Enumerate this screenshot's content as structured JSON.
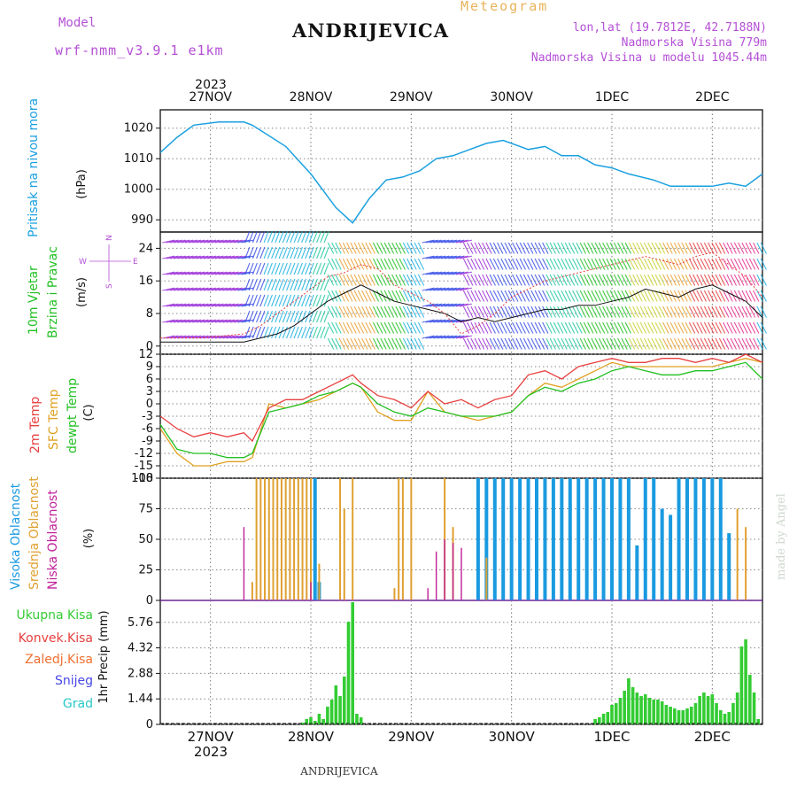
{
  "header": {
    "model_label": "Model",
    "model_name": "wrf-nmm_v3.9.1 e1km",
    "title": "ANDRIJEVICA",
    "meteogram_label": "Meteogram",
    "lonlat": "lon,lat (19.7812E, 42.7188N)",
    "elevation": "Nadmorska Visina 779m",
    "model_elevation": "Nadmorska Visina u modelu 1045.44m"
  },
  "top_axis": {
    "year": "2023",
    "dates": [
      "27NOV",
      "28NOV",
      "29NOV",
      "30NOV",
      "1DEC",
      "2DEC"
    ]
  },
  "bottom_axis": {
    "year": "2023",
    "dates": [
      "27NOV",
      "28NOV",
      "29NOV",
      "30NOV",
      "1DEC",
      "2DEC"
    ],
    "footer": "ANDRIJEVICA"
  },
  "watermark": "made by Angel",
  "colors": {
    "pressure": "#1aa0e0",
    "wind_label": "#22c022",
    "temp2m": "#e84040",
    "sfc": "#e0a020",
    "dew": "#22c022",
    "high": "#1a9ae0",
    "mid": "#e0a030",
    "low": "#c0209a",
    "precip": "#33cc33",
    "kisa_konv": "#e84040",
    "kisa_zal": "#f07030",
    "snow": "#4848e8",
    "grad": "#28c8c8"
  },
  "panels": {
    "pressure": {
      "label1": "Pritisak na nivou mora",
      "unit": "(hPa)"
    },
    "wind": {
      "label1": "10m Vjetar",
      "label2": "Brzina i Pravac",
      "unit": "(m/s)",
      "compass": {
        "n": "N",
        "s": "S",
        "e": "E",
        "w": "W"
      }
    },
    "temp": {
      "label1": "2m Temp",
      "label2": "SFC Temp",
      "label3": "dewpt Temp",
      "unit": "(C)"
    },
    "cloud": {
      "label1": "Visoka Oblacnost",
      "label2": "Srednja Oblacnost",
      "label3": "Niska Oblacnost",
      "unit": "(%)"
    },
    "precip": {
      "legend": [
        "Ukupna Kisa",
        "Konvek.Kisa",
        "Zaledj.Kisa",
        "Snijeg",
        "Grad"
      ],
      "unit": "1hr Precip (mm)"
    }
  },
  "chart_data": [
    {
      "type": "line",
      "id": "pressure",
      "ylabel": "(hPa)",
      "ylim": [
        986,
        1026
      ],
      "yticks": [
        990,
        1000,
        1010,
        1020
      ],
      "xlim_hours": [
        0,
        144
      ],
      "series": [
        {
          "x": [
            0,
            4,
            8,
            14,
            20,
            22,
            30,
            36,
            42,
            46,
            48,
            50,
            54,
            58,
            62,
            66,
            70,
            74,
            78,
            82,
            88,
            92,
            96,
            100,
            104,
            108,
            112,
            118,
            122,
            128,
            132,
            136,
            140,
            144
          ],
          "y": [
            1012,
            1017,
            1021,
            1022,
            1022,
            1021,
            1014,
            1005,
            994,
            989,
            993,
            997,
            1003,
            1004,
            1006,
            1010,
            1011,
            1013,
            1015,
            1016,
            1013,
            1014,
            1011,
            1011,
            1008,
            1007,
            1005,
            1003,
            1001,
            1001,
            1001,
            1002,
            1001,
            1005
          ]
        }
      ]
    },
    {
      "type": "line",
      "id": "wind",
      "ylabel": "(m/s)",
      "ylim": [
        -2,
        28
      ],
      "yticks": [
        0,
        8,
        16,
        24
      ],
      "series": [
        {
          "x": [
            0,
            10,
            20,
            24,
            28,
            32,
            36,
            40,
            44,
            48,
            52,
            56,
            60,
            64,
            68,
            72,
            76,
            80,
            84,
            88,
            92,
            96,
            100,
            104,
            108,
            112,
            116,
            120,
            124,
            128,
            132,
            136,
            140,
            144
          ],
          "y": [
            1,
            1,
            1,
            2,
            3,
            5,
            8,
            11,
            13,
            15,
            13,
            11,
            10,
            9,
            8,
            6,
            7,
            6,
            7,
            8,
            9,
            9,
            10,
            10,
            11,
            12,
            14,
            13,
            12,
            14,
            15,
            13,
            11,
            7
          ]
        },
        {
          "x": [
            0,
            10,
            20,
            24,
            28,
            32,
            36,
            40,
            44,
            48,
            52,
            56,
            60,
            64,
            68,
            72,
            76,
            80,
            84,
            88,
            92,
            96,
            100,
            104,
            108,
            112,
            116,
            120,
            124,
            128,
            132,
            136,
            140,
            144
          ],
          "y": [
            2,
            2,
            3,
            5,
            8,
            11,
            14,
            17,
            18,
            20,
            19,
            15,
            13,
            11,
            8,
            3,
            5,
            8,
            12,
            14,
            16,
            17,
            18,
            19,
            20,
            21,
            22,
            21,
            20,
            22,
            23,
            20,
            17,
            12
          ]
        }
      ]
    },
    {
      "type": "line",
      "id": "temp",
      "ylabel": "(C)",
      "ylim": [
        -18,
        12
      ],
      "yticks": [
        -18,
        -15,
        -12,
        -9,
        -6,
        -3,
        0,
        3,
        6,
        9,
        12
      ],
      "series": [
        {
          "name": "2m Temp",
          "x": [
            0,
            4,
            8,
            12,
            16,
            20,
            22,
            26,
            30,
            34,
            38,
            42,
            46,
            48,
            52,
            56,
            60,
            64,
            68,
            72,
            76,
            80,
            84,
            88,
            92,
            96,
            100,
            104,
            108,
            112,
            116,
            120,
            124,
            128,
            132,
            136,
            140,
            144
          ],
          "y": [
            -3,
            -6,
            -8,
            -7,
            -8,
            -7,
            -9,
            -1,
            1,
            1,
            3,
            5,
            7,
            5,
            2,
            1,
            -1,
            3,
            0,
            1,
            -1,
            1,
            2,
            7,
            8,
            6,
            9,
            10,
            11,
            10,
            10,
            11,
            11,
            10,
            11,
            10,
            12,
            10
          ]
        },
        {
          "name": "SFC Temp",
          "x": [
            0,
            4,
            8,
            12,
            16,
            20,
            22,
            26,
            30,
            34,
            38,
            42,
            46,
            48,
            52,
            56,
            60,
            64,
            68,
            72,
            76,
            80,
            84,
            88,
            92,
            96,
            100,
            104,
            108,
            112,
            116,
            120,
            124,
            128,
            132,
            136,
            140,
            144
          ],
          "y": [
            -6,
            -12,
            -15,
            -15,
            -14,
            -14,
            -13,
            0,
            -1,
            0,
            1,
            3,
            5,
            4,
            -2,
            -4,
            -4,
            3,
            -2,
            -3,
            -4,
            -3,
            -2,
            2,
            5,
            4,
            6,
            8,
            10,
            9,
            9,
            9,
            9,
            9,
            9,
            10,
            11,
            10
          ]
        },
        {
          "name": "dewpt Temp",
          "x": [
            0,
            4,
            8,
            12,
            16,
            20,
            22,
            26,
            30,
            34,
            38,
            42,
            46,
            48,
            52,
            56,
            60,
            64,
            68,
            72,
            76,
            80,
            84,
            88,
            92,
            96,
            100,
            104,
            108,
            112,
            116,
            120,
            124,
            128,
            132,
            136,
            140,
            144
          ],
          "y": [
            -5,
            -11,
            -12,
            -12,
            -13,
            -13,
            -12,
            -2,
            -1,
            0,
            2,
            3,
            5,
            4,
            0,
            -2,
            -3,
            -1,
            -2,
            -3,
            -3,
            -3,
            -2,
            2,
            4,
            3,
            5,
            6,
            8,
            9,
            8,
            7,
            7,
            8,
            8,
            9,
            10,
            6
          ]
        }
      ]
    },
    {
      "type": "bar",
      "id": "cloud",
      "ylabel": "(%)",
      "ylim": [
        0,
        100
      ],
      "yticks": [
        0,
        25,
        50,
        75,
        100
      ],
      "series": [
        {
          "name": "Visoka Oblacnost",
          "hours": [
            37,
            38,
            76,
            78,
            80,
            82,
            84,
            86,
            88,
            90,
            92,
            94,
            96,
            98,
            100,
            102,
            104,
            106,
            108,
            110,
            112,
            114,
            116,
            118,
            120,
            122,
            124,
            126,
            128,
            130,
            132,
            134,
            136
          ],
          "values": [
            100,
            15,
            100,
            100,
            100,
            100,
            100,
            100,
            100,
            100,
            100,
            100,
            100,
            100,
            100,
            100,
            100,
            100,
            100,
            100,
            100,
            45,
            100,
            100,
            75,
            70,
            100,
            100,
            100,
            100,
            100,
            100,
            55
          ]
        },
        {
          "name": "Srednja Oblacnost",
          "hours": [
            22,
            23,
            24,
            25,
            26,
            27,
            28,
            29,
            30,
            31,
            32,
            33,
            34,
            35,
            36,
            38,
            43,
            44,
            46,
            56,
            57,
            58,
            60,
            68,
            70,
            72,
            78,
            138,
            140
          ],
          "values": [
            15,
            100,
            100,
            100,
            100,
            100,
            100,
            100,
            100,
            100,
            100,
            100,
            100,
            100,
            100,
            30,
            100,
            75,
            100,
            10,
            100,
            100,
            100,
            100,
            60,
            5,
            35,
            75,
            60
          ]
        },
        {
          "name": "Niska Oblacnost",
          "hours": [
            20,
            36,
            64,
            66,
            68,
            70,
            72
          ],
          "values": [
            60,
            15,
            10,
            40,
            50,
            47,
            43
          ]
        }
      ]
    },
    {
      "type": "bar",
      "id": "precip",
      "ylabel": "1hr Precip (mm)",
      "ylim": [
        0,
        7
      ],
      "yticks": [
        0,
        1.44,
        2.88,
        4.32,
        5.76
      ],
      "series": [
        {
          "name": "Ukupna Kisa",
          "hours": [
            34,
            35,
            36,
            37,
            38,
            39,
            40,
            41,
            42,
            43,
            44,
            45,
            46,
            47,
            48,
            104,
            105,
            106,
            107,
            108,
            109,
            110,
            111,
            112,
            113,
            114,
            115,
            116,
            117,
            118,
            119,
            120,
            121,
            122,
            123,
            124,
            125,
            126,
            127,
            128,
            129,
            130,
            131,
            132,
            133,
            134,
            135,
            136,
            137,
            138,
            139,
            140,
            141,
            142,
            143
          ],
          "values": [
            0.1,
            0.3,
            0.4,
            0.2,
            0.6,
            0.3,
            1.0,
            1.4,
            2.2,
            1.6,
            2.7,
            5.8,
            6.9,
            0.6,
            0.4,
            0.3,
            0.4,
            0.6,
            0.7,
            1.1,
            1.2,
            1.5,
            1.9,
            2.6,
            2.1,
            1.8,
            1.6,
            1.7,
            1.5,
            1.4,
            1.4,
            1.3,
            1.1,
            1.0,
            0.9,
            0.8,
            0.8,
            0.9,
            1.0,
            1.2,
            1.6,
            1.8,
            1.6,
            1.7,
            1.2,
            0.8,
            0.6,
            0.7,
            1.2,
            1.8,
            4.4,
            4.8,
            2.8,
            1.8,
            0.3
          ]
        }
      ]
    }
  ]
}
